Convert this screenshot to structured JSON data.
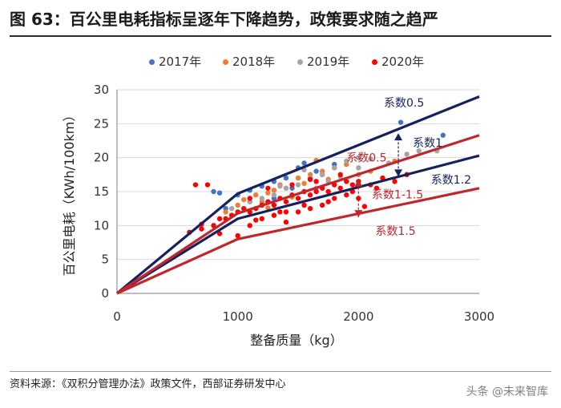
{
  "header": {
    "title": "图 63：百公里电耗指标呈逐年下降趋势，政策要求随之趋严"
  },
  "footer": {
    "source": "资料来源：《双积分管理办法》政策文件，西部证券研发中心",
    "watermark": "头条 @未来智库"
  },
  "colors": {
    "y2017": "#4472c4",
    "y2018": "#ed7d31",
    "y2019": "#a5a5a5",
    "y2020": "#ff0000",
    "navy": "#17215c",
    "crimson": "#c0272d",
    "grid": "#d9d9d9",
    "axis": "#7f7f7f"
  },
  "chart_data": {
    "type": "scatter",
    "xlabel": "整备质量（kg）",
    "ylabel": "百公里电耗（KWh/100km）",
    "xlim": [
      0,
      3000
    ],
    "ylim": [
      0,
      30
    ],
    "x_ticks": [
      0,
      1000,
      2000,
      3000
    ],
    "y_ticks": [
      0,
      5,
      10,
      15,
      20,
      25,
      30
    ],
    "grid": true,
    "legend_position": "top",
    "series": [
      {
        "name": "2017年",
        "color": "#4472c4",
        "points": [
          [
            800,
            15
          ],
          [
            850,
            14.8
          ],
          [
            1000,
            14.5
          ],
          [
            1100,
            15.2
          ],
          [
            1200,
            15.8
          ],
          [
            1300,
            16.5
          ],
          [
            1400,
            17
          ],
          [
            1500,
            18.5
          ],
          [
            1550,
            19.2
          ],
          [
            1650,
            18
          ],
          [
            1800,
            19
          ],
          [
            2000,
            20
          ],
          [
            2350,
            25.2
          ],
          [
            2700,
            23.3
          ],
          [
            1300,
            14
          ],
          [
            1450,
            15.5
          ],
          [
            1600,
            16.8
          ],
          [
            1100,
            13.5
          ],
          [
            900,
            12.5
          ],
          [
            1700,
            17.5
          ]
        ]
      },
      {
        "name": "2018年",
        "color": "#ed7d31",
        "points": [
          [
            900,
            12
          ],
          [
            1000,
            13
          ],
          [
            1050,
            13.8
          ],
          [
            1150,
            14.5
          ],
          [
            1200,
            13.5
          ],
          [
            1250,
            14.8
          ],
          [
            1300,
            15.2
          ],
          [
            1350,
            16
          ],
          [
            1400,
            15.5
          ],
          [
            1500,
            17
          ],
          [
            1600,
            17.5
          ],
          [
            1700,
            18
          ],
          [
            1800,
            18.5
          ],
          [
            1900,
            19
          ],
          [
            2100,
            18
          ],
          [
            2300,
            19.5
          ],
          [
            1550,
            16.2
          ],
          [
            1450,
            14.2
          ],
          [
            1750,
            16.8
          ],
          [
            1650,
            19.6
          ],
          [
            1250,
            12.6
          ],
          [
            2000,
            17.5
          ]
        ]
      },
      {
        "name": "2019年",
        "color": "#a5a5a5",
        "points": [
          [
            950,
            12.5
          ],
          [
            1100,
            13.5
          ],
          [
            1200,
            14
          ],
          [
            1300,
            14.5
          ],
          [
            1400,
            15.5
          ],
          [
            1500,
            16
          ],
          [
            1600,
            17
          ],
          [
            1700,
            17.5
          ],
          [
            1800,
            18.5
          ],
          [
            1900,
            19.5
          ],
          [
            2000,
            20
          ],
          [
            2100,
            19.8
          ],
          [
            2250,
            19.2
          ],
          [
            2400,
            20.5
          ],
          [
            2500,
            21
          ],
          [
            2650,
            21
          ],
          [
            1650,
            15.5
          ],
          [
            1350,
            15.8
          ],
          [
            1550,
            18.2
          ],
          [
            1750,
            16.5
          ],
          [
            2000,
            18.5
          ],
          [
            1850,
            17.2
          ]
        ]
      },
      {
        "name": "2020年",
        "color": "#ff0000",
        "points": [
          [
            650,
            16
          ],
          [
            750,
            16
          ],
          [
            600,
            9
          ],
          [
            700,
            9.5
          ],
          [
            800,
            10
          ],
          [
            850,
            11
          ],
          [
            900,
            11
          ],
          [
            950,
            11.5
          ],
          [
            1000,
            12
          ],
          [
            1050,
            12.5
          ],
          [
            1100,
            12
          ],
          [
            1150,
            12.5
          ],
          [
            1200,
            13
          ],
          [
            1250,
            13.5
          ],
          [
            1300,
            13
          ],
          [
            1350,
            14
          ],
          [
            1400,
            13.5
          ],
          [
            1450,
            14.5
          ],
          [
            1500,
            14
          ],
          [
            1550,
            15
          ],
          [
            1600,
            14.5
          ],
          [
            1650,
            15
          ],
          [
            1700,
            15.5
          ],
          [
            1750,
            15
          ],
          [
            1800,
            16
          ],
          [
            1850,
            15.5
          ],
          [
            1900,
            16.5
          ],
          [
            1950,
            16
          ],
          [
            2000,
            16.5
          ],
          [
            2100,
            16
          ],
          [
            2200,
            17
          ],
          [
            2300,
            16.5
          ],
          [
            2400,
            17.5
          ],
          [
            1000,
            8.5
          ],
          [
            1100,
            10
          ],
          [
            1200,
            11
          ],
          [
            1300,
            11.5
          ],
          [
            1400,
            12
          ],
          [
            1500,
            12
          ],
          [
            1600,
            12.5
          ],
          [
            1700,
            13
          ],
          [
            1800,
            14
          ],
          [
            1900,
            14.5
          ],
          [
            2000,
            14
          ],
          [
            1250,
            15.5
          ],
          [
            1450,
            16
          ],
          [
            1650,
            16.5
          ],
          [
            1850,
            17.5
          ],
          [
            1350,
            12
          ],
          [
            1550,
            13
          ],
          [
            1750,
            13.5
          ],
          [
            1950,
            15
          ],
          [
            2150,
            15.5
          ],
          [
            850,
            8.8
          ],
          [
            1150,
            10.8
          ],
          [
            1600,
            16.8
          ],
          [
            1400,
            10.5
          ],
          [
            2050,
            12.8
          ],
          [
            700,
            10.2
          ],
          [
            1100,
            14
          ]
        ]
      }
    ],
    "reference_lines": [
      {
        "name": "系数0.5",
        "color": "#17215c",
        "points": [
          [
            0,
            0
          ],
          [
            1000,
            14.7
          ],
          [
            3000,
            29
          ]
        ]
      },
      {
        "name": "系数1",
        "color": "#17215c",
        "points": [
          [
            0,
            0
          ],
          [
            1000,
            11
          ],
          [
            3000,
            20.3
          ]
        ]
      },
      {
        "name": "系数0.5",
        "color": "#c0272d",
        "points": [
          [
            0,
            0
          ],
          [
            1000,
            11.8
          ],
          [
            3000,
            23.3
          ]
        ]
      },
      {
        "name": "系数1.5",
        "color": "#c0272d",
        "points": [
          [
            0,
            0
          ],
          [
            1000,
            8
          ],
          [
            3000,
            15.5
          ]
        ]
      }
    ],
    "annotations": [
      {
        "text": "系数0.5",
        "color": "#17215c",
        "x": 2210,
        "y": 27.5
      },
      {
        "text": "系数1",
        "color": "#17215c",
        "x": 2450,
        "y": 21.6
      },
      {
        "text": "系数1.2",
        "color": "#17215c",
        "x": 2600,
        "y": 16.2
      },
      {
        "text": "系数0.5",
        "color": "#c0272d",
        "x": 1900,
        "y": 19.4
      },
      {
        "text": "系数1-1.5",
        "color": "#c0272d",
        "x": 2110,
        "y": 14
      },
      {
        "text": "系数1.5",
        "color": "#c0272d",
        "x": 2140,
        "y": 8.6
      }
    ],
    "arrows": [
      {
        "color": "#17215c",
        "x": 2330,
        "from_y": 17.2,
        "to_y": 23.6
      },
      {
        "color": "#c0272d",
        "x": 2000,
        "from_y": 16.8,
        "to_y": 11.2
      }
    ]
  }
}
